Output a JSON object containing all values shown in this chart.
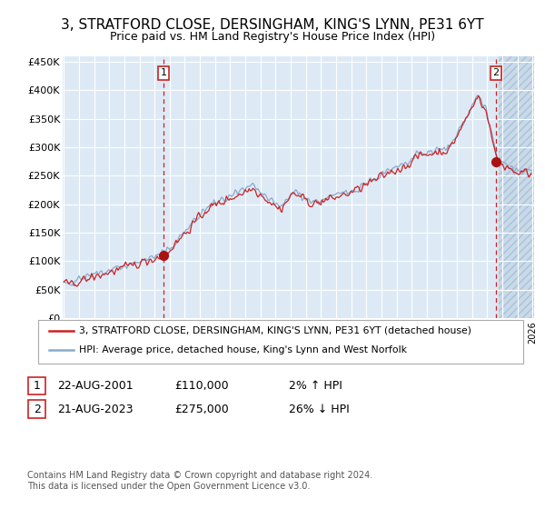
{
  "title": "3, STRATFORD CLOSE, DERSINGHAM, KING'S LYNN, PE31 6YT",
  "subtitle": "Price paid vs. HM Land Registry's House Price Index (HPI)",
  "sale1_date": "22-AUG-2001",
  "sale1_price": 110000,
  "sale1_hpi_pct": "2% ↑ HPI",
  "sale2_date": "21-AUG-2023",
  "sale2_price": 275000,
  "sale2_hpi_pct": "26% ↓ HPI",
  "legend_property": "3, STRATFORD CLOSE, DERSINGHAM, KING'S LYNN, PE31 6YT (detached house)",
  "legend_hpi": "HPI: Average price, detached house, King's Lynn and West Norfolk",
  "footer": "Contains HM Land Registry data © Crown copyright and database right 2024.\nThis data is licensed under the Open Government Licence v3.0.",
  "y_ticks": [
    0,
    50000,
    100000,
    150000,
    200000,
    250000,
    300000,
    350000,
    400000,
    450000
  ],
  "y_labels": [
    "£0",
    "£50K",
    "£100K",
    "£150K",
    "£200K",
    "£250K",
    "£300K",
    "£350K",
    "£400K",
    "£450K"
  ],
  "ylim": [
    0,
    460000
  ],
  "background_color": "#ddeaf6",
  "line_color_red": "#cc2222",
  "line_color_blue": "#88aacc",
  "marker_color": "#aa1111",
  "vline_color": "#cc2222",
  "box_color": "#cc2222",
  "x_start_year": 1995,
  "x_end_year": 2026
}
